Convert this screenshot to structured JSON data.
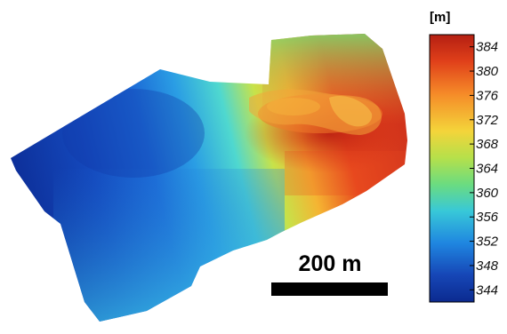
{
  "map": {
    "colormap": [
      "#0b2a8f",
      "#1b6fd8",
      "#35c3e6",
      "#5fe0b0",
      "#a6e44d",
      "#f4e33a",
      "#f79428",
      "#e0401a",
      "#b41f12"
    ],
    "value_min": 340,
    "value_max": 388
  },
  "scale_bar": {
    "label": "200 m",
    "length_m": 200
  },
  "legend": {
    "unit": "[m]",
    "ticks": [
      "384",
      "380",
      "376",
      "372",
      "368",
      "364",
      "360",
      "356",
      "352",
      "348",
      "344"
    ],
    "tick_values": [
      384,
      380,
      376,
      372,
      368,
      364,
      360,
      356,
      352,
      348,
      344
    ],
    "colors": [
      "#b91d12",
      "#e8401c",
      "#f58a28",
      "#f9c835",
      "#c9e04a",
      "#7fdc7a",
      "#3fcfc9",
      "#27a7e6",
      "#1b6fd8",
      "#1643b4",
      "#0e2c8f"
    ]
  }
}
